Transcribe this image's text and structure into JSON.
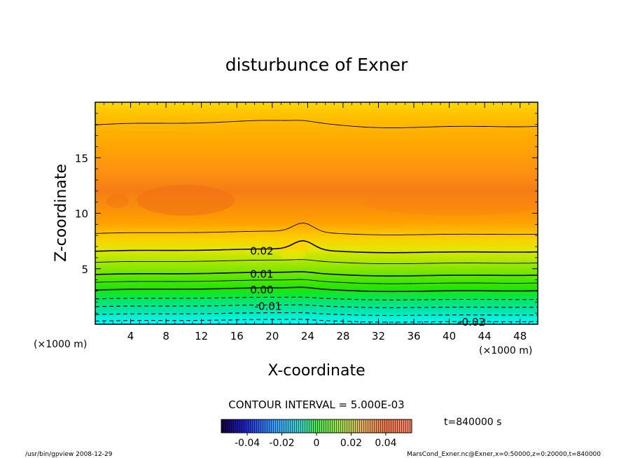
{
  "chart_data": {
    "type": "heatmap",
    "title": "disturbunce of Exner",
    "xlabel": "X-coordinate",
    "ylabel": "Z-coordinate",
    "x_unit": "(×1000 m)",
    "x_unit_right": "(×1000 m)",
    "z_unit": "(×1000 m)",
    "x_ticks": [
      4,
      8,
      12,
      16,
      20,
      24,
      28,
      32,
      36,
      40,
      44,
      48
    ],
    "z_ticks": [
      5,
      10,
      15
    ],
    "xlim": [
      0,
      50
    ],
    "zlim": [
      0,
      20
    ],
    "contour_interval_text": "CONTOUR INTERVAL = 5.000E-03",
    "time_text": "t=840000 s",
    "contour_labels": [
      {
        "text": "0.02",
        "x": 17.5,
        "z": 6.6
      },
      {
        "text": "0.01",
        "x": 17.5,
        "z": 4.5
      },
      {
        "text": "0.00",
        "x": 17.5,
        "z": 3.1
      },
      {
        "text": "-0.01",
        "x": 18.0,
        "z": 1.6
      },
      {
        "text": "-0.02",
        "x": 41.0,
        "z": 0.2
      }
    ],
    "solid_contours_z": [
      18.0,
      8.2,
      6.6,
      5.6,
      4.5,
      3.8,
      3.1
    ],
    "dashed_contours_z": [
      2.3,
      1.6,
      0.9,
      0.3
    ],
    "colorbar": {
      "ticks": [
        "-0.04",
        "-0.02",
        "0",
        "0.02",
        "0.04"
      ],
      "range": [
        -0.055,
        0.055
      ],
      "low_color": "#140040",
      "high_color": "#ff8a70"
    },
    "field_colors": {
      "top": "#ffd400",
      "upper_mid": "#ffa000",
      "core": "#f57d14",
      "transition": "#e6e600",
      "mid": "#64e600",
      "lower": "#00e664",
      "bottom": "#00ffff"
    }
  },
  "footer": {
    "left": "/usr/bin/gpview   2008-12-29",
    "right": "MarsCond_Exner.nc@Exner,x=0:50000,z=0:20000,t=840000"
  }
}
